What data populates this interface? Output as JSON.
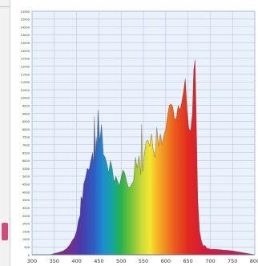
{
  "chart_data": {
    "type": "area",
    "title": "",
    "xlabel": "",
    "ylabel": "",
    "xlim": [
      300,
      800
    ],
    "ylim": [
      0,
      15500
    ],
    "x_ticks": [
      "300",
      "350",
      "400",
      "450",
      "500",
      "550",
      "600",
      "650",
      "700",
      "750",
      "800"
    ],
    "y_ticks": [
      "0",
      "500",
      "1000",
      "1500",
      "2000",
      "2500",
      "3000",
      "3500",
      "4000",
      "4500",
      "5000",
      "5500",
      "6000",
      "6500",
      "7000",
      "7500",
      "8000",
      "8500",
      "9000",
      "9500",
      "10000",
      "10500",
      "11000",
      "11500",
      "12000",
      "12500",
      "13000",
      "13500",
      "14000",
      "14500",
      "15000",
      "15500"
    ],
    "grid": true,
    "series": [
      {
        "x": [
          340,
          350,
          360,
          370,
          378,
          385,
          390,
          395,
          400,
          404,
          408,
          410,
          413,
          416,
          420,
          424,
          428,
          432,
          436,
          438,
          440,
          442,
          444,
          446,
          448,
          452,
          456,
          460,
          464,
          468,
          472,
          476,
          480,
          484,
          488,
          492,
          496,
          500,
          504,
          508,
          512,
          516,
          520,
          524,
          528,
          532,
          536,
          540,
          544,
          546,
          548,
          552,
          556,
          560,
          564,
          568,
          572,
          576,
          580,
          584,
          588,
          592,
          596,
          600,
          604,
          608,
          612,
          616,
          620,
          624,
          628,
          632,
          636,
          640,
          644,
          648,
          652,
          656,
          660,
          663,
          666,
          669,
          672,
          676,
          680,
          684,
          688,
          692,
          696,
          700,
          710,
          720,
          730,
          740,
          750,
          760,
          770,
          780,
          790,
          800
        ],
        "y": [
          0,
          80,
          150,
          250,
          400,
          650,
          900,
          1100,
          1500,
          2200,
          2500,
          3700,
          3500,
          4500,
          4900,
          5500,
          5400,
          6000,
          6500,
          5800,
          8800,
          6000,
          7500,
          6800,
          9200,
          7200,
          8300,
          6400,
          6200,
          5800,
          5200,
          6000,
          5500,
          4600,
          5000,
          4700,
          4400,
          4900,
          5400,
          5200,
          4700,
          4300,
          4300,
          4500,
          4700,
          6200,
          5500,
          6300,
          5100,
          8300,
          5300,
          6400,
          7200,
          7300,
          6900,
          7700,
          6700,
          6200,
          8100,
          6900,
          7700,
          7000,
          7600,
          8000,
          8800,
          9500,
          9600,
          9400,
          8600,
          8700,
          9500,
          9200,
          9700,
          10400,
          11200,
          9200,
          8000,
          7900,
          9000,
          11800,
          12400,
          8000,
          3500,
          1500,
          900,
          550,
          600,
          420,
          400,
          360,
          350,
          330,
          300,
          280,
          250,
          200,
          150,
          100,
          50,
          0
        ]
      }
    ]
  }
}
